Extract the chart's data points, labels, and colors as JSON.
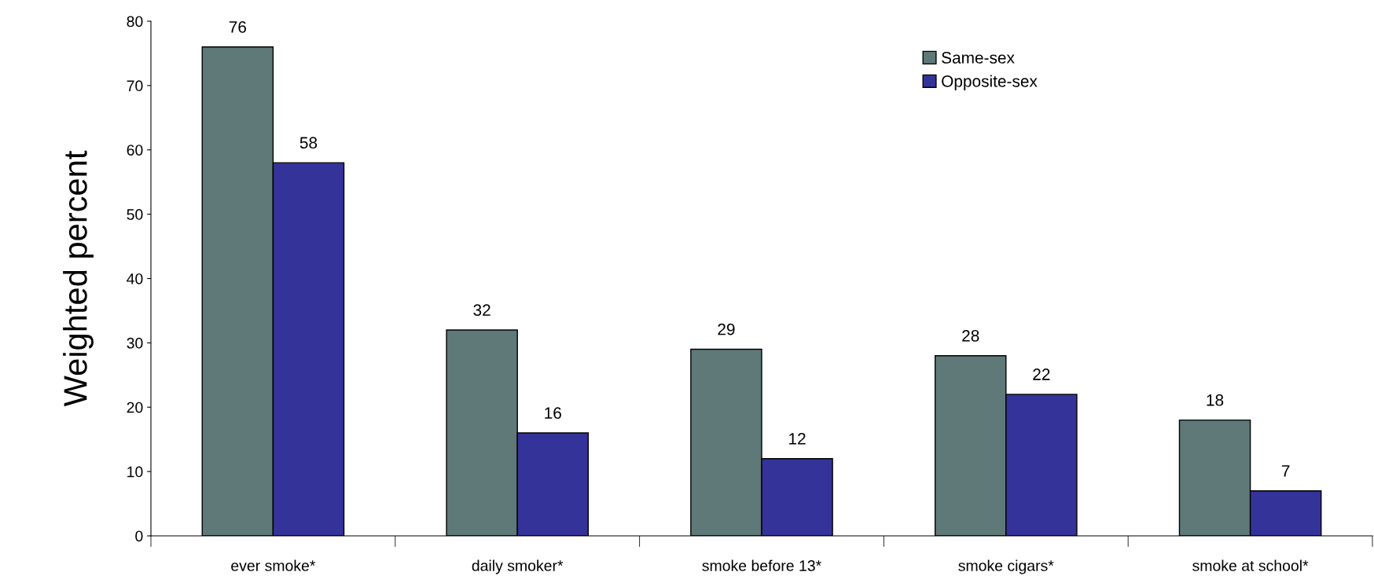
{
  "chart_data": {
    "type": "bar",
    "ylabel": "Weighted percent",
    "categories": [
      "ever smoke*",
      "daily smoker*",
      "smoke before 13*",
      "smoke cigars*",
      "smoke at school*"
    ],
    "series": [
      {
        "name": "Same-sex",
        "color": "#5f7878",
        "values": [
          76,
          32,
          29,
          28,
          18
        ]
      },
      {
        "name": "Opposite-sex",
        "color": "#333399",
        "values": [
          58,
          16,
          12,
          22,
          7
        ]
      }
    ],
    "ylim": [
      0,
      80
    ],
    "yticks": [
      0,
      10,
      20,
      30,
      40,
      50,
      60,
      70,
      80
    ],
    "grid": false,
    "legend": "top right",
    "data_labels": true
  }
}
